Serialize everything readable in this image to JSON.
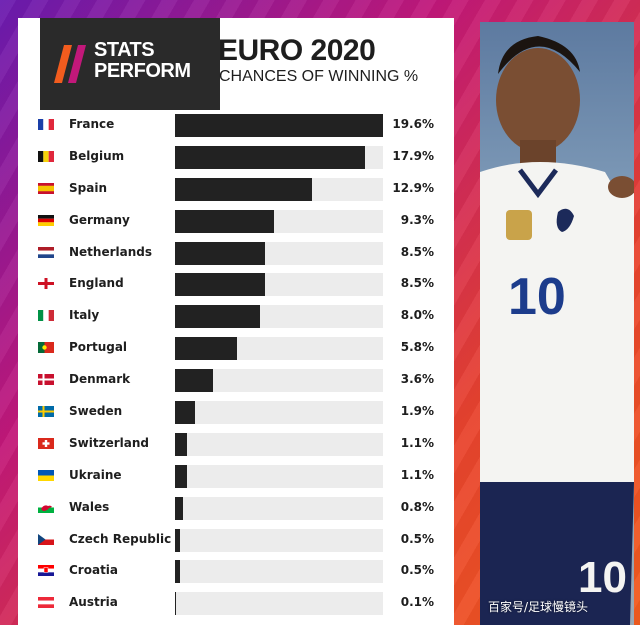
{
  "header": {
    "brand_line1": "STATS",
    "brand_line2": "PERFORM",
    "title": "EURO 2020",
    "subtitle": "CHANCES OF WINNING %"
  },
  "chart_data": {
    "type": "bar",
    "orientation": "horizontal",
    "title": "EURO 2020",
    "subtitle": "CHANCES OF WINNING %",
    "xlim": [
      0,
      19.6
    ],
    "grid": false,
    "categories": [
      "France",
      "Belgium",
      "Spain",
      "Germany",
      "Netherlands",
      "England",
      "Italy",
      "Portugal",
      "Denmark",
      "Sweden",
      "Switzerland",
      "Ukraine",
      "Wales",
      "Czech Republic",
      "Croatia",
      "Austria"
    ],
    "values": [
      19.6,
      17.9,
      12.9,
      9.3,
      8.5,
      8.5,
      8.0,
      5.8,
      3.6,
      1.9,
      1.1,
      1.1,
      0.8,
      0.5,
      0.5,
      0.1
    ],
    "value_labels": [
      "19.6%",
      "17.9%",
      "12.9%",
      "9.3%",
      "8.5%",
      "8.5%",
      "8.0%",
      "5.8%",
      "3.6%",
      "1.9%",
      "1.1%",
      "1.1%",
      "0.8%",
      "0.5%",
      "0.5%",
      "0.1%"
    ],
    "flag_icons": [
      "france-flag-icon",
      "belgium-flag-icon",
      "spain-flag-icon",
      "germany-flag-icon",
      "netherlands-flag-icon",
      "england-flag-icon",
      "italy-flag-icon",
      "portugal-flag-icon",
      "denmark-flag-icon",
      "sweden-flag-icon",
      "switzerland-flag-icon",
      "ukraine-flag-icon",
      "wales-flag-icon",
      "czech-republic-flag-icon",
      "croatia-flag-icon",
      "austria-flag-icon"
    ],
    "bar_color": "#222222",
    "track_color": "#ececec"
  },
  "photo": {
    "shirt_number": "10",
    "icon": "player-photo"
  },
  "watermark": "百家号/足球慢镜头",
  "colors": {
    "background_gradient": [
      "#6a1bb0",
      "#c2187a",
      "#e8432e",
      "#f25c1e"
    ],
    "logo_box": "#2a2a2a",
    "logo_slash_1": "#f25c1e",
    "logo_slash_2": "#c2187a"
  }
}
